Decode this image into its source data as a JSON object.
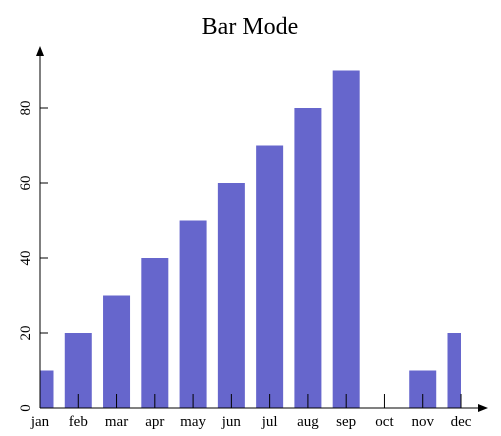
{
  "chart_data": {
    "type": "bar",
    "title": "Bar Mode",
    "categories": [
      "jan",
      "feb",
      "mar",
      "apr",
      "may",
      "jun",
      "jul",
      "aug",
      "sep",
      "oct",
      "nov",
      "dec"
    ],
    "values": [
      10,
      20,
      30,
      40,
      50,
      60,
      70,
      80,
      90,
      0,
      10,
      20
    ],
    "color": "#6666cc",
    "ylim": [
      0,
      96
    ],
    "yticks": [
      0,
      20,
      40,
      60,
      80
    ]
  }
}
